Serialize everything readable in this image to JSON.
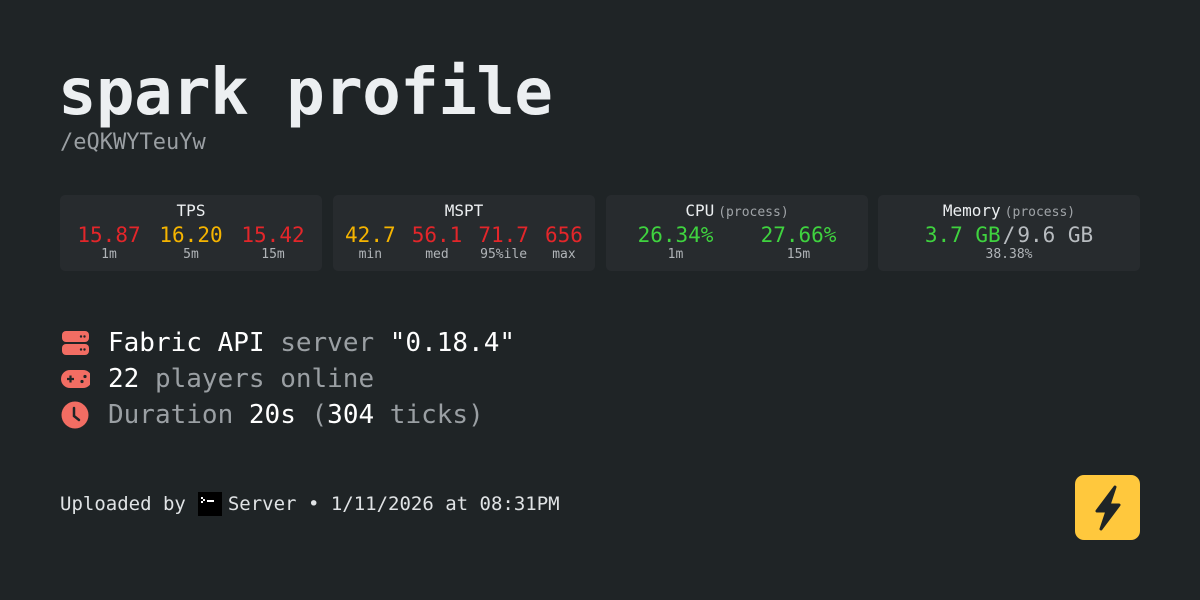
{
  "title": "spark profile",
  "subtitle": "/eQKWYTeuYw",
  "cards": {
    "tps": {
      "title": "TPS",
      "values": [
        {
          "v": "15.87",
          "l": "1m"
        },
        {
          "v": "16.20",
          "l": "5m"
        },
        {
          "v": "15.42",
          "l": "15m"
        }
      ]
    },
    "mspt": {
      "title": "MSPT",
      "values": [
        {
          "v": "42.7",
          "l": "min"
        },
        {
          "v": "56.1",
          "l": "med"
        },
        {
          "v": "71.7",
          "l": "95%ile"
        },
        {
          "v": "656",
          "l": "max"
        }
      ]
    },
    "cpu": {
      "title": "CPU",
      "qualifier": "(process)",
      "values": [
        {
          "v": "26.34%",
          "l": "1m"
        },
        {
          "v": "27.66%",
          "l": "15m"
        }
      ]
    },
    "memory": {
      "title": "Memory",
      "qualifier": "(process)",
      "used": "3.7 GB",
      "sep": "/",
      "total": "9.6 GB",
      "percent": "38.38%"
    }
  },
  "info": {
    "platform": "Fabric API",
    "server_word": "server",
    "version": "\"0.18.4\"",
    "players": "22",
    "players_suffix": "players online",
    "duration_label": "Duration",
    "duration": "20s",
    "ticks_open": "(",
    "ticks": "304",
    "ticks_suffix": "ticks)"
  },
  "footer": {
    "uploaded_by": "Uploaded by",
    "user": "Server",
    "sep": "•",
    "date": "1/11/2026 at 08:31PM"
  },
  "colors": {
    "bad": "#e3262a",
    "warn": "#f5b400",
    "good": "#3fd33f",
    "icon": "#f26d63",
    "logo": "#ffc83d",
    "background": "#1f2426"
  },
  "icons": [
    "server-icon",
    "gamepad-icon",
    "clock-icon",
    "terminal-avatar-icon",
    "lightning-bolt-icon"
  ]
}
